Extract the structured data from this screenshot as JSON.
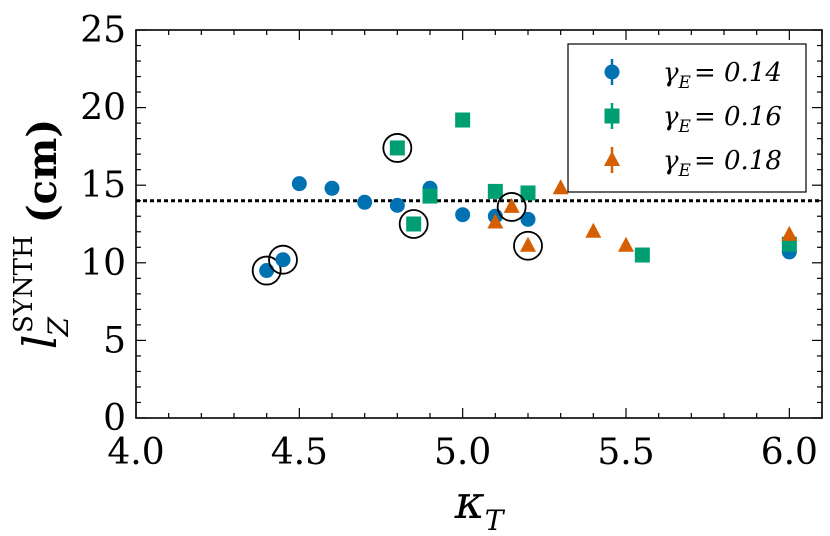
{
  "chart_data": {
    "type": "scatter",
    "xlabel": "κ",
    "xlabel_sub": "T",
    "ylabel_main": "l",
    "ylabel_sub": "Z",
    "ylabel_sup": "SYNTH",
    "ylabel_unit": "(cm)",
    "xlim": [
      4.0,
      6.1
    ],
    "ylim": [
      0,
      25
    ],
    "xticks": [
      "4.0",
      "4.5",
      "5.0",
      "5.5",
      "6.0"
    ],
    "yticks": [
      "0",
      "5",
      "10",
      "15",
      "20",
      "25"
    ],
    "reference_line": {
      "y": 14.0,
      "style": "dashed"
    },
    "legend_position": "top-right",
    "series": [
      {
        "name": "γ_E = 0.14",
        "label_symbol": "γ",
        "label_sub": "E",
        "label_value": "= 0.14",
        "marker": "circle",
        "color": "#0072B2",
        "points": [
          {
            "x": 4.4,
            "y": 9.5,
            "circled": true
          },
          {
            "x": 4.45,
            "y": 10.2,
            "circled": true
          },
          {
            "x": 4.5,
            "y": 15.1
          },
          {
            "x": 4.6,
            "y": 14.8
          },
          {
            "x": 4.7,
            "y": 13.9
          },
          {
            "x": 4.8,
            "y": 13.7
          },
          {
            "x": 4.9,
            "y": 14.8
          },
          {
            "x": 5.0,
            "y": 13.1
          },
          {
            "x": 5.1,
            "y": 13.0
          },
          {
            "x": 5.2,
            "y": 12.8
          },
          {
            "x": 6.0,
            "y": 10.7
          }
        ]
      },
      {
        "name": "γ_E = 0.16",
        "label_symbol": "γ",
        "label_sub": "E",
        "label_value": "= 0.16",
        "marker": "square",
        "color": "#009E73",
        "points": [
          {
            "x": 4.8,
            "y": 17.4,
            "circled": true
          },
          {
            "x": 4.85,
            "y": 12.5,
            "circled": true
          },
          {
            "x": 4.9,
            "y": 14.3
          },
          {
            "x": 5.0,
            "y": 19.2
          },
          {
            "x": 5.1,
            "y": 14.6
          },
          {
            "x": 5.2,
            "y": 14.5
          },
          {
            "x": 5.55,
            "y": 10.5
          },
          {
            "x": 6.0,
            "y": 11.2
          }
        ]
      },
      {
        "name": "γ_E = 0.18",
        "label_symbol": "γ",
        "label_sub": "E",
        "label_value": "= 0.18",
        "marker": "triangle",
        "color": "#D55E00",
        "points": [
          {
            "x": 5.1,
            "y": 12.6
          },
          {
            "x": 5.15,
            "y": 13.6,
            "circled": true
          },
          {
            "x": 5.2,
            "y": 11.1,
            "circled": true
          },
          {
            "x": 5.3,
            "y": 14.8
          },
          {
            "x": 5.4,
            "y": 12.0
          },
          {
            "x": 5.5,
            "y": 11.1
          },
          {
            "x": 6.0,
            "y": 11.8
          }
        ]
      }
    ]
  }
}
